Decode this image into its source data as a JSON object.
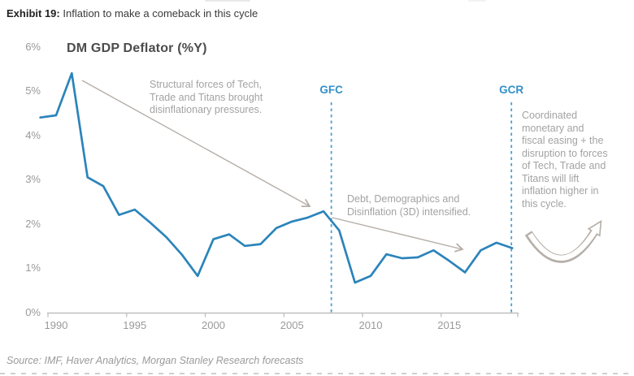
{
  "exhibit": {
    "label": "Exhibit 19:",
    "title": "Inflation to make a comeback in this cycle"
  },
  "chart_data": {
    "type": "line",
    "title": "DM GDP Deflator (%Y)",
    "xlabel": "",
    "ylabel": "",
    "ylim": [
      0,
      6
    ],
    "xlim": [
      1989,
      2019
    ],
    "grid": false,
    "legend": false,
    "y_ticks": [
      "0%",
      "1%",
      "2%",
      "3%",
      "4%",
      "5%",
      "6%"
    ],
    "x_ticks": [
      1990,
      1995,
      2000,
      2005,
      2010,
      2015
    ],
    "series": [
      {
        "name": "DM GDP Deflator (%Y)",
        "x": [
          1989,
          1990,
          1991,
          1992,
          1993,
          1994,
          1995,
          1996,
          1997,
          1998,
          1999,
          2000,
          2001,
          2002,
          2003,
          2004,
          2005,
          2006,
          2007,
          2008,
          2009,
          2010,
          2011,
          2012,
          2013,
          2014,
          2015,
          2016,
          2017,
          2018,
          2019
        ],
        "values": [
          4.4,
          4.45,
          5.4,
          3.05,
          2.85,
          2.2,
          2.32,
          2.02,
          1.7,
          1.3,
          0.82,
          1.65,
          1.76,
          1.5,
          1.54,
          1.9,
          2.05,
          2.14,
          2.28,
          1.85,
          0.67,
          0.82,
          1.31,
          1.22,
          1.24,
          1.4,
          1.16,
          0.9,
          1.4,
          1.57,
          1.45
        ]
      }
    ],
    "events": [
      {
        "label": "GFC",
        "year": 2007.5
      },
      {
        "label": "GCR",
        "year": 2018.95
      }
    ],
    "annotations": [
      {
        "text": "Structural forces of Tech,\nTrade and Titans brought\ndisinflationary pressures."
      },
      {
        "text": "Debt, Demographics and\nDisinflation (3D) intensified."
      },
      {
        "text": "Coordinated\nmonetary and\nfiscal easing + the\ndisruption to forces\nof Tech, Trade and\nTitans will lift\ninflation higher in\nthis cycle."
      }
    ]
  },
  "colors": {
    "line": "#2b84ba",
    "event": "#4aa0d4",
    "event_label": "#3390c8",
    "annotation_gray": "#a3a3a3",
    "arrow_gray": "#b5aea7",
    "axis_gray": "#c0c0c0"
  },
  "source": "Source: IMF, Haver Analytics, Morgan Stanley Research forecasts"
}
